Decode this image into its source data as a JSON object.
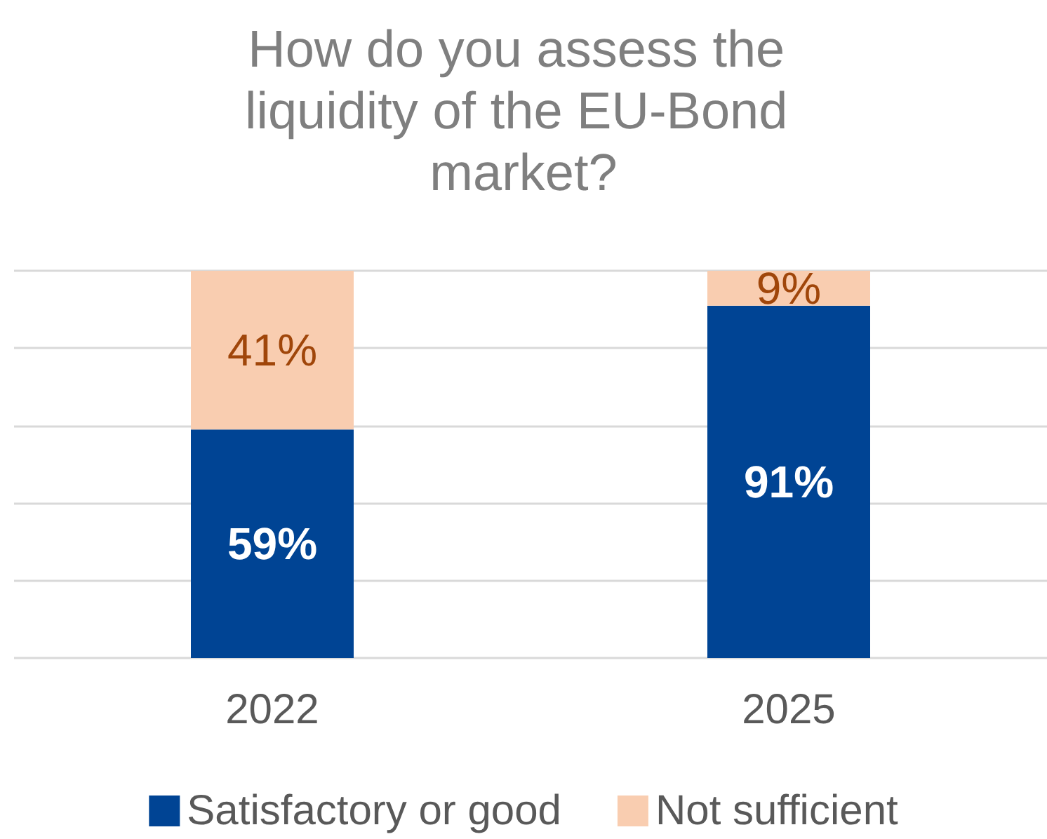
{
  "chart_data": {
    "type": "bar",
    "title": "How do you assess the liquidity of the EU-Bond market?",
    "categories": [
      "2022",
      "2025"
    ],
    "stacked": true,
    "series": [
      {
        "name": "Satisfactory or good",
        "color": "#004494",
        "values": [
          59,
          91
        ],
        "value_labels": [
          "59%",
          "91%"
        ]
      },
      {
        "name": "Not sufficient",
        "color": "#f9cdb0",
        "values": [
          41,
          9
        ],
        "value_labels": [
          "41%",
          "9%"
        ]
      }
    ],
    "grid": "y",
    "tick_labels": "x",
    "legend": "bottom"
  }
}
